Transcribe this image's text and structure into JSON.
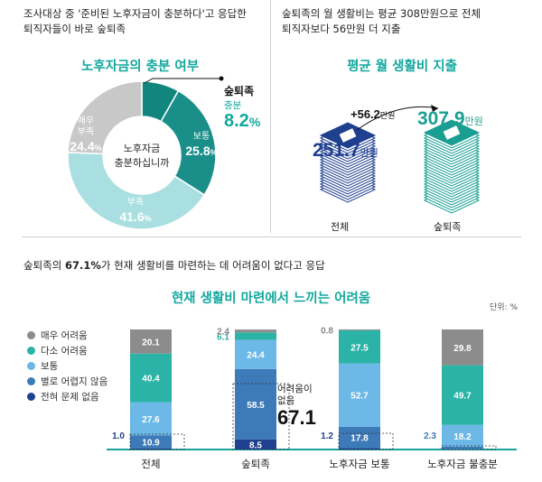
{
  "top_left_caption": [
    "조사대상 중 '준비된 노후자금이 충분하다'고 응답한",
    "퇴직자들이 바로 숲퇴족"
  ],
  "top_right_caption": [
    "숲퇴족의 월 생활비는 평균 308만원으로 전체",
    "퇴직자보다 56만원 더 지출"
  ],
  "bottom_caption": "숲퇴족의 67.1%가 현재 생활비를 마련하는 데 어려움이 없다고 응답",
  "bottom_caption_parts": {
    "pre": "숲퇴족의 ",
    "bold": "67.1%",
    "post": "가 현재 생활비를 마련하는 데 어려움이 없다고 응답"
  },
  "pie_section_title": "노후자금의 충분 여부",
  "spending_section_title": "평균 월 생활비 지출",
  "bar_section_title": "현재 생활비 마련에서 느끼는 어려움",
  "unit_label": "단위: %",
  "pie_center_label": [
    "노후자금",
    "충분하십니까"
  ],
  "spending": {
    "overall_value": "251.7",
    "overall_unit": "만원",
    "overall_label": "전체",
    "sup_value": "307.9",
    "sup_unit": "만원",
    "sup_label": "숲퇴족",
    "diff_value": "+56.2",
    "diff_unit": "만원"
  },
  "bar_annotation": {
    "text": [
      "어려움이",
      "없음"
    ],
    "value": "67.1"
  },
  "colors": {
    "very_hard": "#8c8c8c",
    "somewhat_hard": "#2ab3a6",
    "normal": "#6cb8e6",
    "not_hard": "#3d7ab8",
    "no_problem": "#1f3f8f",
    "pie_very": "#c8c8c8",
    "pie_normal": "#1a8f8a",
    "pie_suff": "#a9dfe0",
    "pie_sup": "#12857f",
    "teal_text": "#13a89e",
    "money": "#1f3f8f",
    "money_teal": "#1a9e92"
  },
  "chart_data": [
    {
      "type": "pie",
      "title": "노후자금의 충분 여부",
      "slices": [
        {
          "label": "숲퇴족",
          "sublabel": "충분",
          "value": 8.2
        },
        {
          "label": "보통",
          "value": 25.8
        },
        {
          "label": "부족",
          "value": 41.6
        },
        {
          "label": "매우 부족",
          "value": 24.4
        }
      ]
    },
    {
      "type": "bar",
      "title": "평균 월 생활비 지출",
      "categories": [
        "전체",
        "숲퇴족"
      ],
      "values": [
        251.7,
        307.9
      ],
      "unit": "만원",
      "difference": 56.2
    },
    {
      "type": "bar",
      "stacked": true,
      "title": "현재 생활비 마련에서 느끼는 어려움",
      "unit": "%",
      "categories": [
        "전체",
        "숲퇴족",
        "노후자금 보통",
        "노후자금 불충분"
      ],
      "legend": [
        "매우 어려움",
        "다소 어려움",
        "보통",
        "별로 어렵지 않음",
        "전혀 문제 없음"
      ],
      "series": [
        {
          "name": "매우 어려움",
          "values": [
            20.1,
            2.4,
            0.8,
            29.8
          ]
        },
        {
          "name": "다소 어려움",
          "values": [
            40.4,
            6.1,
            27.5,
            49.7
          ]
        },
        {
          "name": "보통",
          "values": [
            27.6,
            24.4,
            52.7,
            18.2
          ]
        },
        {
          "name": "별로 어렵지 않음",
          "values": [
            10.9,
            58.5,
            17.8,
            2.3
          ]
        },
        {
          "name": "전혀 문제 없음",
          "values": [
            1.0,
            8.5,
            1.2,
            0.0
          ]
        }
      ],
      "segment_labels": [
        [
          "20.1",
          "40.4",
          "27.6",
          "10.9",
          "1.0"
        ],
        [
          "2.4",
          "6.1",
          "24.4",
          "58.5",
          "8.5"
        ],
        [
          "0.8",
          "27.5",
          "52.7",
          "17.8",
          "1.2"
        ],
        [
          "29.8",
          "49.7",
          "18.2",
          "2.3",
          ""
        ]
      ]
    }
  ]
}
